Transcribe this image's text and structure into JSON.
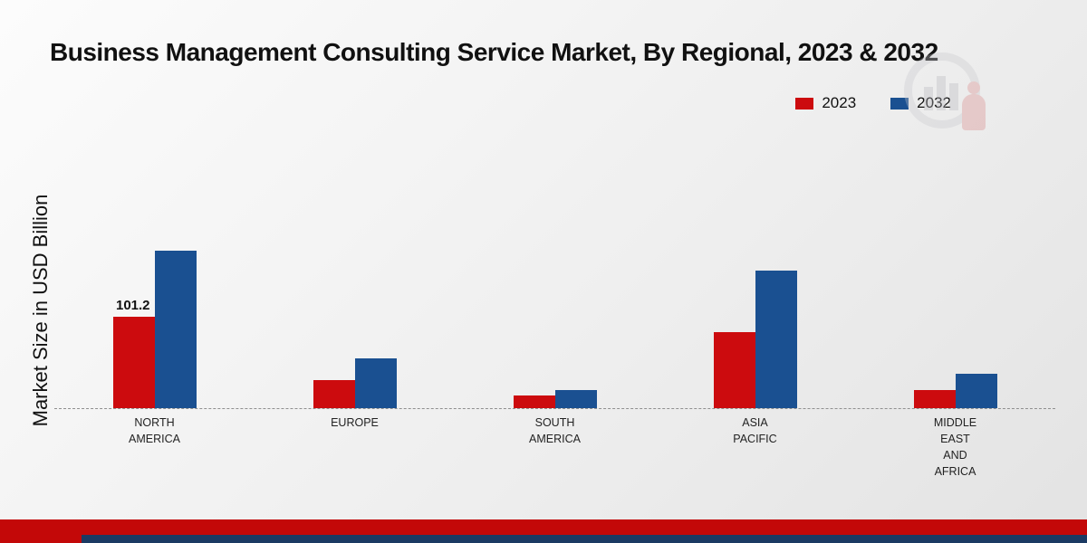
{
  "title": "Business Management Consulting Service Market, By Regional, 2023 & 2032",
  "ylabel": "Market Size in USD Billion",
  "legend": [
    {
      "label": "2023",
      "color": "#cc0b0e"
    },
    {
      "label": "2032",
      "color": "#1a5091"
    }
  ],
  "chart_data": {
    "type": "bar",
    "title": "Business Management Consulting Service Market, By Regional, 2023 & 2032",
    "xlabel": "",
    "ylabel": "Market Size in USD Billion",
    "categories": [
      [
        "NORTH",
        "AMERICA"
      ],
      [
        "EUROPE"
      ],
      [
        "SOUTH",
        "AMERICA"
      ],
      [
        "ASIA",
        "PACIFIC"
      ],
      [
        "MIDDLE",
        "EAST",
        "AND",
        "AFRICA"
      ]
    ],
    "series": [
      {
        "name": "2023",
        "color": "#cc0b0e",
        "values": [
          101.2,
          31.0,
          13.5,
          84.0,
          20.0
        ]
      },
      {
        "name": "2032",
        "color": "#1a5091",
        "values": [
          174.0,
          55.0,
          20.0,
          152.0,
          37.5
        ]
      }
    ],
    "annotations": [
      {
        "series_index": 0,
        "category_index": 0,
        "text": "101.2"
      }
    ],
    "ylim": [
      0,
      200
    ],
    "grid": false,
    "baseline_style": "dashed",
    "legend_position": "top-right"
  },
  "footer": {
    "red": "#c30808",
    "navy": "#1b3a63"
  }
}
